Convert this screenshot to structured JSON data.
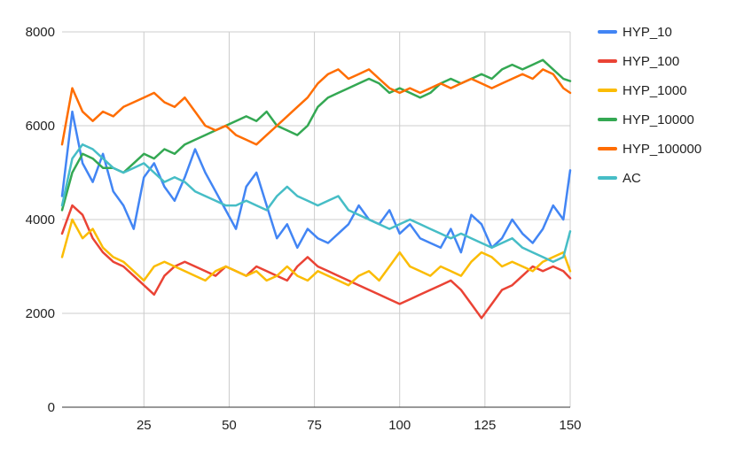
{
  "chart_data": {
    "type": "line",
    "title": "",
    "xlabel": "",
    "ylabel": "",
    "xlim": [
      1,
      150
    ],
    "ylim": [
      0,
      8000
    ],
    "x_ticks": [
      "25",
      "50",
      "75",
      "100",
      "125",
      "150"
    ],
    "y_ticks": [
      "0",
      "2000",
      "4000",
      "6000",
      "8000"
    ],
    "grid": true,
    "legend_position": "right",
    "x": [
      1,
      4,
      7,
      10,
      13,
      16,
      19,
      22,
      25,
      28,
      31,
      34,
      37,
      40,
      43,
      46,
      49,
      52,
      55,
      58,
      61,
      64,
      67,
      70,
      73,
      76,
      79,
      82,
      85,
      88,
      91,
      94,
      97,
      100,
      103,
      106,
      109,
      112,
      115,
      118,
      121,
      124,
      127,
      130,
      133,
      136,
      139,
      142,
      145,
      148,
      150
    ],
    "series": [
      {
        "name": "HYP_10",
        "color": "#4285f4",
        "values": [
          4500,
          6300,
          5200,
          4800,
          5400,
          4600,
          4300,
          3800,
          4900,
          5200,
          4700,
          4400,
          4900,
          5500,
          5000,
          4600,
          4200,
          3800,
          4700,
          5000,
          4300,
          3600,
          3900,
          3400,
          3800,
          3600,
          3500,
          3700,
          3900,
          4300,
          4000,
          3900,
          4200,
          3700,
          3900,
          3600,
          3500,
          3400,
          3800,
          3300,
          4100,
          3900,
          3400,
          3600,
          4000,
          3700,
          3500,
          3800,
          4300,
          4000,
          5050
        ]
      },
      {
        "name": "HYP_100",
        "color": "#ea4335",
        "values": [
          3700,
          4300,
          4100,
          3600,
          3300,
          3100,
          3000,
          2800,
          2600,
          2400,
          2800,
          3000,
          3100,
          3000,
          2900,
          2800,
          3000,
          2900,
          2800,
          3000,
          2900,
          2800,
          2700,
          3000,
          3200,
          3000,
          2900,
          2800,
          2700,
          2600,
          2500,
          2400,
          2300,
          2200,
          2300,
          2400,
          2500,
          2600,
          2700,
          2500,
          2200,
          1900,
          2200,
          2500,
          2600,
          2800,
          3000,
          2900,
          3000,
          2900,
          2750
        ]
      },
      {
        "name": "HYP_1000",
        "color": "#fbbc04",
        "values": [
          3200,
          4000,
          3600,
          3800,
          3400,
          3200,
          3100,
          2900,
          2700,
          3000,
          3100,
          3000,
          2900,
          2800,
          2700,
          2900,
          3000,
          2900,
          2800,
          2900,
          2700,
          2800,
          3000,
          2800,
          2700,
          2900,
          2800,
          2700,
          2600,
          2800,
          2900,
          2700,
          3000,
          3300,
          3000,
          2900,
          2800,
          3000,
          2900,
          2800,
          3100,
          3300,
          3200,
          3000,
          3100,
          3000,
          2900,
          3100,
          3200,
          3300,
          2900
        ]
      },
      {
        "name": "HYP_10000",
        "color": "#34a853",
        "values": [
          4200,
          5000,
          5400,
          5300,
          5100,
          5100,
          5000,
          5200,
          5400,
          5300,
          5500,
          5400,
          5600,
          5700,
          5800,
          5900,
          6000,
          6100,
          6200,
          6100,
          6300,
          6000,
          5900,
          5800,
          6000,
          6400,
          6600,
          6700,
          6800,
          6900,
          7000,
          6900,
          6700,
          6800,
          6700,
          6600,
          6700,
          6900,
          7000,
          6900,
          7000,
          7100,
          7000,
          7200,
          7300,
          7200,
          7300,
          7400,
          7200,
          7000,
          6950
        ]
      },
      {
        "name": "HYP_100000",
        "color": "#ff6d01",
        "values": [
          5600,
          6800,
          6300,
          6100,
          6300,
          6200,
          6400,
          6500,
          6600,
          6700,
          6500,
          6400,
          6600,
          6300,
          6000,
          5900,
          6000,
          5800,
          5700,
          5600,
          5800,
          6000,
          6200,
          6400,
          6600,
          6900,
          7100,
          7200,
          7000,
          7100,
          7200,
          7000,
          6800,
          6700,
          6800,
          6700,
          6800,
          6900,
          6800,
          6900,
          7000,
          6900,
          6800,
          6900,
          7000,
          7100,
          7000,
          7200,
          7100,
          6800,
          6700
        ]
      },
      {
        "name": "AC",
        "color": "#46bdc6",
        "values": [
          4300,
          5300,
          5600,
          5500,
          5300,
          5100,
          5000,
          5100,
          5200,
          5000,
          4800,
          4900,
          4800,
          4600,
          4500,
          4400,
          4300,
          4300,
          4400,
          4300,
          4200,
          4500,
          4700,
          4500,
          4400,
          4300,
          4400,
          4500,
          4200,
          4100,
          4000,
          3900,
          3800,
          3900,
          4000,
          3900,
          3800,
          3700,
          3600,
          3700,
          3600,
          3500,
          3400,
          3500,
          3600,
          3400,
          3300,
          3200,
          3100,
          3200,
          3750
        ]
      }
    ]
  }
}
